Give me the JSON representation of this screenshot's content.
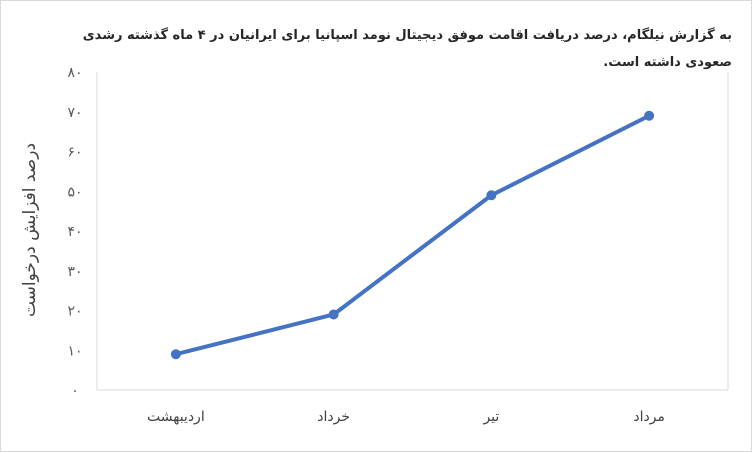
{
  "chart_data": {
    "type": "line",
    "title": "به گزارش نیلگام، درصد دریافت اقامت موفق دیجیتال نومد اسپانیا برای ایرانیان در ۴ ماه گذشته رشدی صعودی داشته است.",
    "xlabel": "",
    "ylabel": "درصد افزایش درخواست",
    "categories": [
      "اردیبهشت",
      "خرداد",
      "تیر",
      "مرداد"
    ],
    "series": [
      {
        "values": [
          9,
          19,
          49,
          69
        ]
      }
    ],
    "ylim": [
      0,
      80
    ],
    "y_ticks": [
      0,
      10,
      20,
      30,
      40,
      50,
      60,
      70,
      80
    ],
    "y_tick_labels": [
      "۰",
      "۱۰",
      "۲۰",
      "۳۰",
      "۴۰",
      "۵۰",
      "۶۰",
      "۷۰",
      "۸۰"
    ],
    "grid": false,
    "legend": "none",
    "colors": {
      "line": "#4472c4"
    }
  }
}
